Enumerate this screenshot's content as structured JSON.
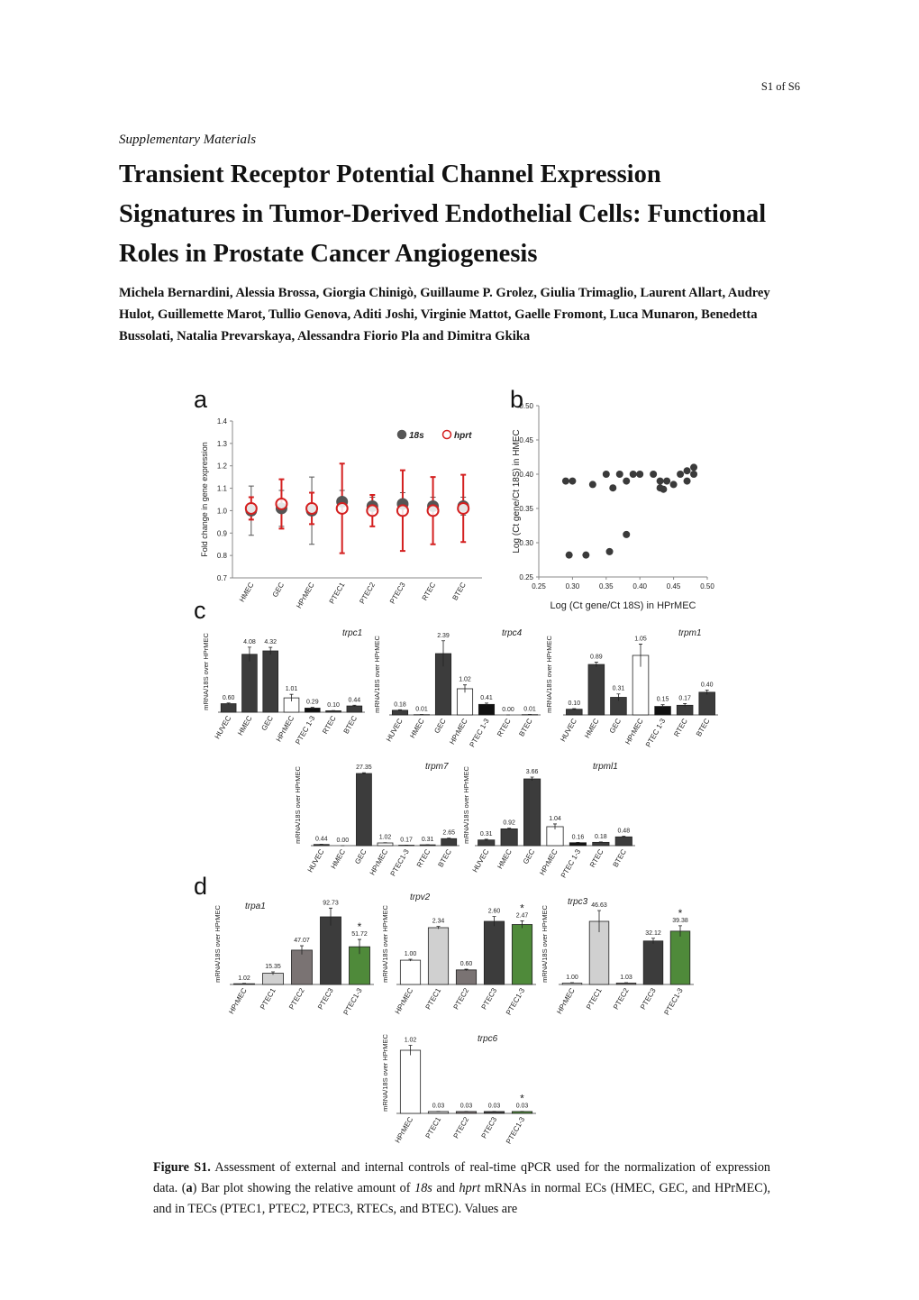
{
  "header": {
    "page": "S1  of S6",
    "supplement": "Supplementary Materials",
    "title": "Transient Receptor Potential Channel Expression Signatures in Tumor-Derived Endothelial Cells: Functional Roles in Prostate Cancer Angiogenesis",
    "authors": "Michela Bernardini, Alessia Brossa, Giorgia Chinigò, Guillaume P. Grolez, Giulia Trimaglio, Laurent Allart, Audrey Hulot, Guillemette Marot, Tullio Genova, Aditi Joshi, Virginie Mattot, Gaelle Fromont, Luca Munaron, Benedetta Bussolati, Natalia Prevarskaya, Alessandra Fiorio Pla and Dimitra Gkika"
  },
  "caption": {
    "label": "Figure S1.",
    "parts": [
      "Assessment of external and internal controls of real-time qPCR used for the normalization of expression data. (",
      "a",
      ") Bar plot showing the relative amount of ",
      "18s",
      " and ",
      "hprt",
      " mRNAs in normal ECs (HMEC, GEC, and HPrMEC), and in TECs (PTEC1, PTEC2, PTEC3, RTECs, and BTEC). Values are"
    ]
  },
  "chart_data": [
    {
      "type": "dot",
      "panel": "a",
      "ylabel": "Fold change in gene expression",
      "categories": [
        "HMEC",
        "GEC",
        "HPrMEC",
        "PTEC1",
        "PTEC2",
        "PTEC3",
        "RTEC",
        "BTEC"
      ],
      "ylim": [
        0.7,
        1.4
      ],
      "yticks": [
        0.7,
        0.8,
        0.9,
        {
          "value": 1,
          "label": "1.0"
        },
        1.1,
        1.2,
        1.3,
        1.4
      ],
      "series": [
        {
          "name": "18s",
          "color": "#555555",
          "marker": "filled",
          "values": [
            1.0,
            1.01,
            1.0,
            1.04,
            1.02,
            1.03,
            1.02,
            1.02
          ],
          "errors": [
            0.11,
            0.08,
            0.15,
            0.05,
            0.04,
            0.05,
            0.04,
            0.04
          ]
        },
        {
          "name": "hprt",
          "color": "#d42020",
          "marker": "open",
          "values": [
            1.01,
            1.03,
            1.01,
            1.01,
            1.0,
            1.0,
            1.0,
            1.01
          ],
          "errors": [
            0.05,
            0.11,
            0.07,
            0.2,
            0.07,
            0.18,
            0.15,
            0.15
          ]
        }
      ]
    },
    {
      "type": "scatter",
      "panel": "b",
      "xlabel": "Log (Ct gene/Ct 18S) in HPrMEC",
      "ylabel": "Log (Ct gene/Ct 18S) in HMEC",
      "color": "#3a3a3a",
      "xlim": [
        0.25,
        0.5
      ],
      "xticks": [
        0.25,
        {
          "value": 0.3,
          "label": "0.30"
        },
        0.35,
        {
          "value": 0.4,
          "label": "0.40"
        },
        0.45,
        {
          "value": 0.5,
          "label": "0.50"
        }
      ],
      "ylim": [
        0.25,
        0.5
      ],
      "yticks": [
        0.25,
        {
          "value": 0.3,
          "label": "0.30"
        },
        0.35,
        {
          "value": 0.4,
          "label": "0.40"
        },
        0.45,
        {
          "value": 0.5,
          "label": "0.50"
        }
      ],
      "x": [
        0.29,
        0.3,
        0.295,
        0.32,
        0.33,
        0.35,
        0.36,
        0.37,
        0.38,
        0.39,
        0.4,
        0.42,
        0.43,
        0.43,
        0.435,
        0.44,
        0.46,
        0.47,
        0.47,
        0.48,
        0.48,
        0.355,
        0.38,
        0.45
      ],
      "y": [
        0.39,
        0.39,
        0.282,
        0.282,
        0.385,
        0.4,
        0.38,
        0.4,
        0.39,
        0.4,
        0.4,
        0.4,
        0.39,
        0.38,
        0.378,
        0.39,
        0.4,
        0.405,
        0.39,
        0.4,
        0.41,
        0.287,
        0.312,
        0.385
      ]
    },
    {
      "type": "bar",
      "panel": "c",
      "title": "trpc1",
      "ylabel": "mRNA/18S over HPrMEC",
      "categories": [
        "HUVEC",
        "HMEC",
        "GEC",
        "HPrMEC",
        "PTEC 1-3",
        "RTEC",
        "BTEC"
      ],
      "values": [
        0.6,
        4.08,
        4.32,
        1.01,
        0.29,
        0.1,
        0.44
      ],
      "value_labels": [
        "0.60",
        "4.08",
        "4.32",
        "1.01",
        "0.29",
        "0.10",
        "0.44"
      ],
      "errors": [
        0.05,
        0.5,
        0.25,
        0.25,
        0.05,
        0.02,
        0.05
      ],
      "colors": [
        "#3c3c3c",
        "#3c3c3c",
        "#3c3c3c",
        "#ffffff",
        "#111111",
        "#3c3c3c",
        "#3c3c3c"
      ]
    },
    {
      "type": "bar",
      "title": "trpc4",
      "ylabel": "mRNA/18S over HPrMEC",
      "categories": [
        "HUVEC",
        "HMEC",
        "GEC",
        "HPrMEC",
        "PTEC 1-3",
        "RTEC",
        "BTEC"
      ],
      "values": [
        0.18,
        0.01,
        2.39,
        1.02,
        0.41,
        0.0,
        0.01
      ],
      "value_labels": [
        "0.18",
        "0.01",
        "2.39",
        "1.02",
        "0.41",
        "0.00",
        "0.01"
      ],
      "errors": [
        0.02,
        0.005,
        0.5,
        0.15,
        0.05,
        0.0,
        0.005
      ],
      "colors": [
        "#3c3c3c",
        "#3c3c3c",
        "#3c3c3c",
        "#ffffff",
        "#111111",
        "#3c3c3c",
        "#3c3c3c"
      ]
    },
    {
      "type": "bar",
      "title": "trpm1",
      "ylabel": "mRNA/18S over HPrMEC",
      "categories": [
        "HUVEC",
        "HMEC",
        "GEC",
        "HPrMEC",
        "PTEC 1-3",
        "RTEC",
        "BTEC"
      ],
      "values": [
        0.1,
        0.89,
        0.31,
        1.05,
        0.15,
        0.17,
        0.4
      ],
      "value_labels": [
        "0.10",
        "0.89",
        "0.31",
        "1.05",
        "0.15",
        "0.17",
        "0.40"
      ],
      "errors": [
        0.01,
        0.04,
        0.06,
        0.2,
        0.03,
        0.03,
        0.04
      ],
      "colors": [
        "#3c3c3c",
        "#3c3c3c",
        "#3c3c3c",
        "#ffffff",
        "#111111",
        "#3c3c3c",
        "#3c3c3c"
      ]
    },
    {
      "type": "bar",
      "title": "trpm7",
      "ylabel": "mRNA/18S over HPrMEC",
      "categories": [
        "HUVEC",
        "HMEC",
        "GEC",
        "HPrMEC",
        "PTEC1-3",
        "RTEC",
        "BTEC"
      ],
      "values": [
        0.44,
        0.0,
        27.35,
        1.02,
        0.17,
        0.31,
        2.65
      ],
      "value_labels": [
        "0.44",
        "0.00",
        "27.35",
        "1.02",
        "0.17",
        "0.31",
        "2.65"
      ],
      "errors": [
        0.05,
        0.0,
        0.3,
        0.1,
        0.03,
        0.04,
        0.2
      ],
      "colors": [
        "#3c3c3c",
        "#3c3c3c",
        "#3c3c3c",
        "#ffffff",
        "#111111",
        "#3c3c3c",
        "#3c3c3c"
      ]
    },
    {
      "type": "bar",
      "title": "trpml1",
      "ylabel": "mRNA/18S over HPrMEC",
      "categories": [
        "HUVEC",
        "HMEC",
        "GEC",
        "HPrMEC",
        "PTEC 1-3",
        "RTEC",
        "BTEC"
      ],
      "values": [
        0.31,
        0.92,
        3.66,
        1.04,
        0.16,
        0.18,
        0.48
      ],
      "value_labels": [
        "0.31",
        "0.92",
        "3.66",
        "1.04",
        "0.16",
        "0.18",
        "0.48"
      ],
      "errors": [
        0.04,
        0.04,
        0.1,
        0.15,
        0.02,
        0.02,
        0.04
      ],
      "colors": [
        "#3c3c3c",
        "#3c3c3c",
        "#3c3c3c",
        "#ffffff",
        "#111111",
        "#3c3c3c",
        "#3c3c3c"
      ]
    },
    {
      "type": "bar",
      "panel": "d",
      "title": "trpa1",
      "ylabel": "mRNA/18S over HPrMEC",
      "categories": [
        "HPrMEC",
        "PTEC1",
        "PTEC2",
        "PTEC3",
        "PTEC1-3"
      ],
      "values": [
        1.02,
        15.35,
        47.07,
        92.73,
        51.72
      ],
      "value_labels": [
        "1.02",
        "15.35",
        "47.07",
        "92.73",
        "51.72"
      ],
      "errors": [
        0.5,
        2,
        6,
        12,
        10
      ],
      "annotations": [
        null,
        null,
        null,
        null,
        "*"
      ],
      "colors": [
        "#ffffff",
        "#d0d0d0",
        "#7a7373",
        "#3c3c3c",
        "#4f8a3a"
      ]
    },
    {
      "type": "bar",
      "title": "trpv2",
      "ylabel": "mRNA/18S over HPrMEC",
      "categories": [
        "HPrMEC",
        "PTEC1",
        "PTEC2",
        "PTEC3",
        "PTEC1-3"
      ],
      "values": [
        1.0,
        2.34,
        0.6,
        2.6,
        2.47
      ],
      "value_labels": [
        "1.00",
        "2.34",
        "0.60",
        "2.60",
        "2.47"
      ],
      "errors": [
        0.04,
        0.05,
        0.03,
        0.2,
        0.15
      ],
      "annotations": [
        null,
        null,
        null,
        null,
        "*"
      ],
      "colors": [
        "#ffffff",
        "#d0d0d0",
        "#7a7373",
        "#3c3c3c",
        "#4f8a3a"
      ]
    },
    {
      "type": "bar",
      "title": "trpc3",
      "ylabel": "mRNA/18S over HPrMEC",
      "categories": [
        "HPrMEC",
        "PTEC1",
        "PTEC2",
        "PTEC3",
        "PTEC1-3"
      ],
      "values": [
        1.0,
        46.63,
        1.03,
        32.12,
        39.38
      ],
      "value_labels": [
        "1.00",
        "46.63",
        "1.03",
        "32.12",
        "39.38"
      ],
      "errors": [
        0.3,
        8,
        0.3,
        2,
        4
      ],
      "annotations": [
        null,
        null,
        null,
        null,
        "*"
      ],
      "colors": [
        "#ffffff",
        "#d0d0d0",
        "#7a7373",
        "#3c3c3c",
        "#4f8a3a"
      ]
    },
    {
      "type": "bar",
      "title": "trpc6",
      "ylabel": "mRNA/18S over HPrMEC",
      "categories": [
        "HPrMEC",
        "PTEC1",
        "PTEC2",
        "PTEC3",
        "PTEC1-3"
      ],
      "values": [
        1.02,
        0.03,
        0.03,
        0.03,
        0.03
      ],
      "value_labels": [
        "1.02",
        "0.03",
        "0.03",
        "0.03",
        "0.03"
      ],
      "errors": [
        0.08,
        0.003,
        0.003,
        0.003,
        0.003
      ],
      "annotations": [
        null,
        null,
        null,
        null,
        "*"
      ],
      "colors": [
        "#ffffff",
        "#d0d0d0",
        "#7a7373",
        "#3c3c3c",
        "#4f8a3a"
      ]
    }
  ]
}
